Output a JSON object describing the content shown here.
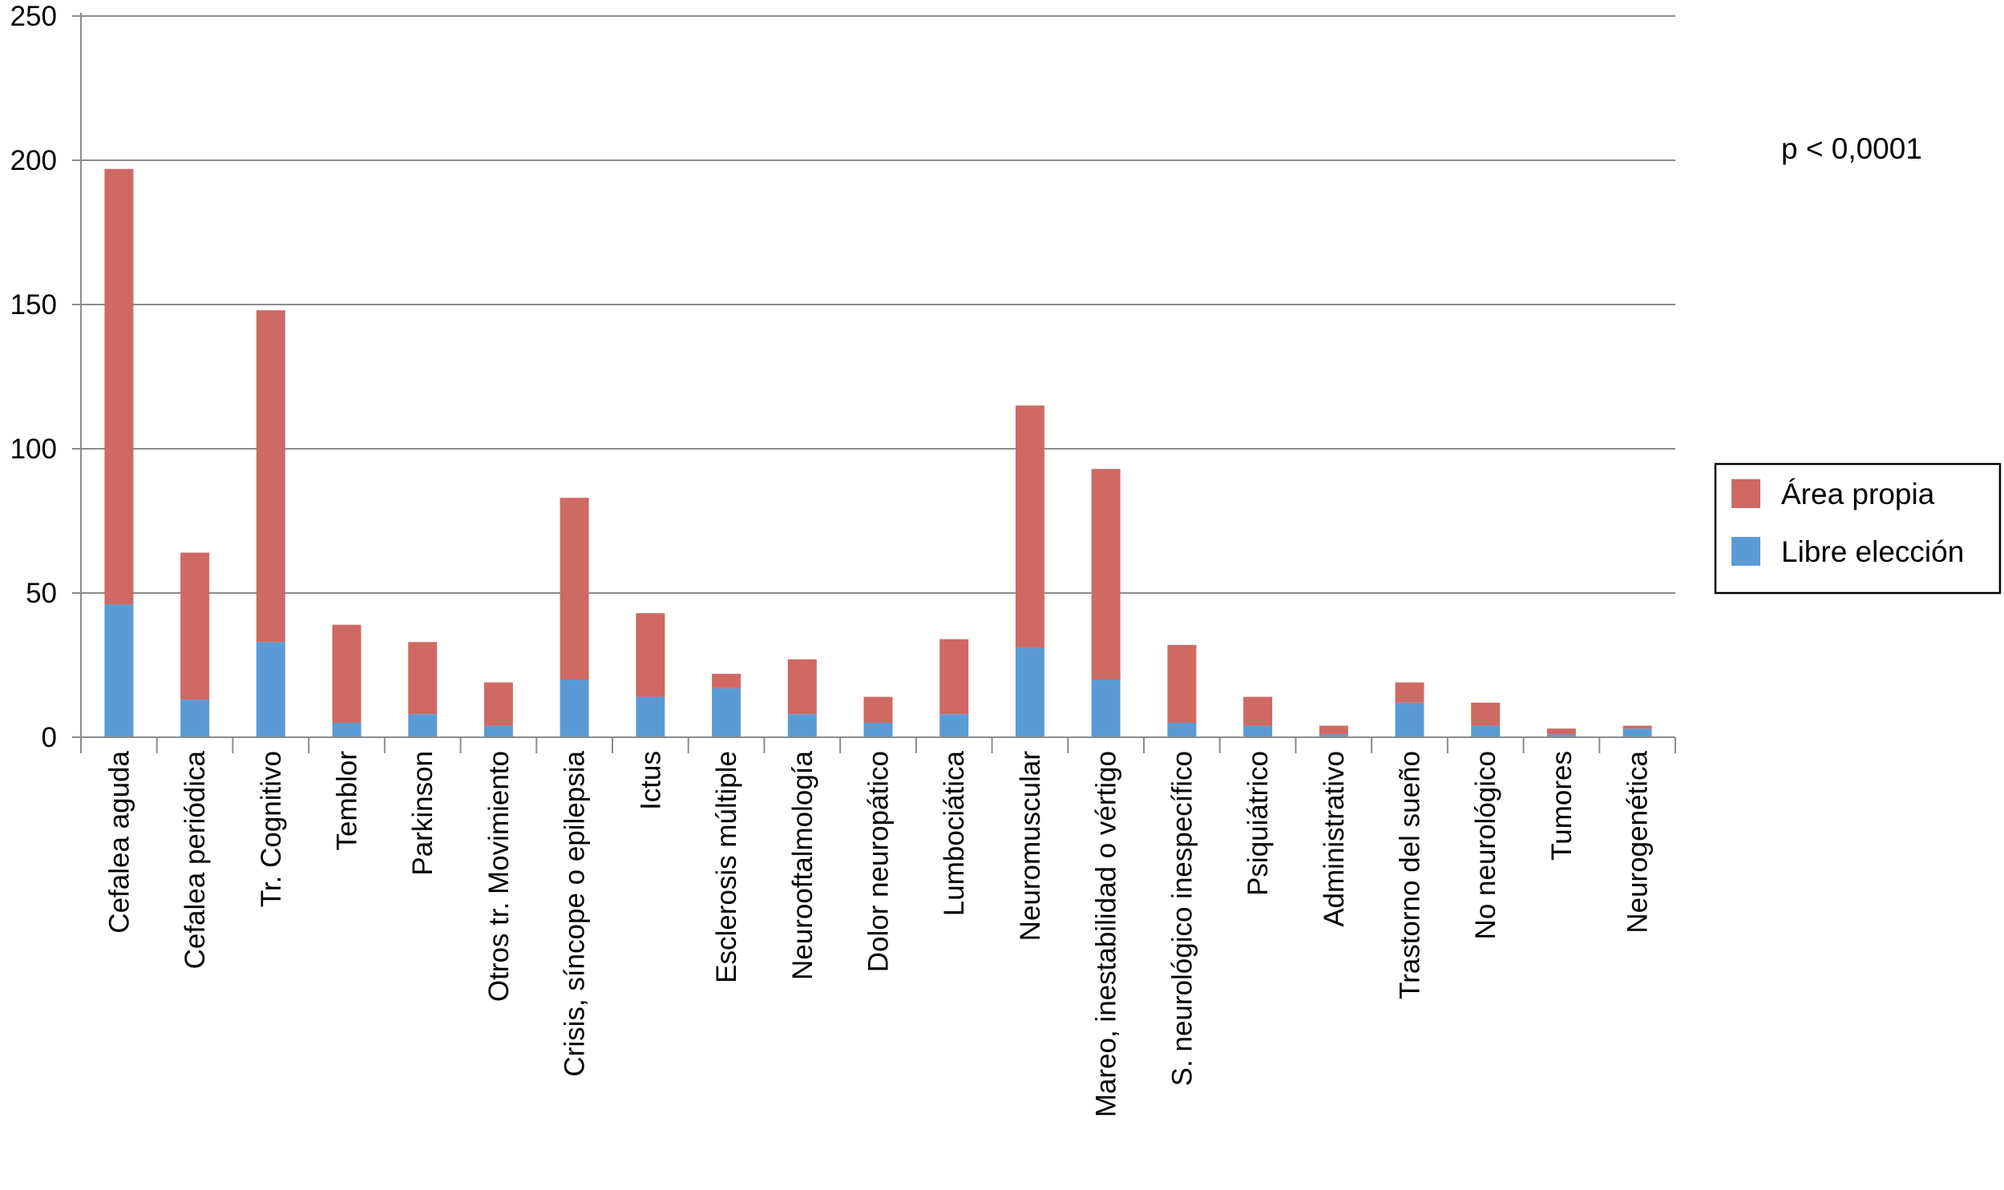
{
  "chart_data": {
    "type": "bar",
    "stacked": true,
    "categories": [
      "Cefalea aguda",
      "Cefalea periódica",
      "Tr. Cognitivo",
      "Temblor",
      "Parkinson",
      "Otros tr. Movimiento",
      "Crisis, síncope o epilepsia",
      "Ictus",
      "Esclerosis múltiple",
      "Neurooftalmología",
      "Dolor neuropático",
      "Lumbociática",
      "Neuromuscular",
      "Mareo, inestabilidad o vértigo",
      "S. neurológico inespecífico",
      "Psiquiátrico",
      "Administrativo",
      "Trastorno del sueño",
      "No neurológico",
      "Tumores",
      "Neurogenética"
    ],
    "series": [
      {
        "name": "Libre elección",
        "color": "#5B9BD5",
        "values": [
          46,
          13,
          33,
          5,
          8,
          4,
          20,
          14,
          17,
          8,
          5,
          8,
          31,
          20,
          5,
          4,
          1,
          12,
          4,
          1,
          3
        ]
      },
      {
        "name": "Área propia",
        "color": "#CF6964",
        "values": [
          151,
          51,
          115,
          34,
          25,
          15,
          63,
          29,
          5,
          19,
          9,
          26,
          84,
          73,
          27,
          10,
          3,
          7,
          8,
          2,
          1
        ]
      }
    ],
    "ylim": [
      0,
      250
    ],
    "yticks": [
      0,
      50,
      100,
      150,
      200,
      250
    ],
    "grid": true,
    "legend": {
      "position": "right",
      "entries": [
        "Área propia",
        "Libre elección"
      ]
    },
    "annotation": "p < 0,0001",
    "title": "",
    "xlabel": "",
    "ylabel": ""
  }
}
